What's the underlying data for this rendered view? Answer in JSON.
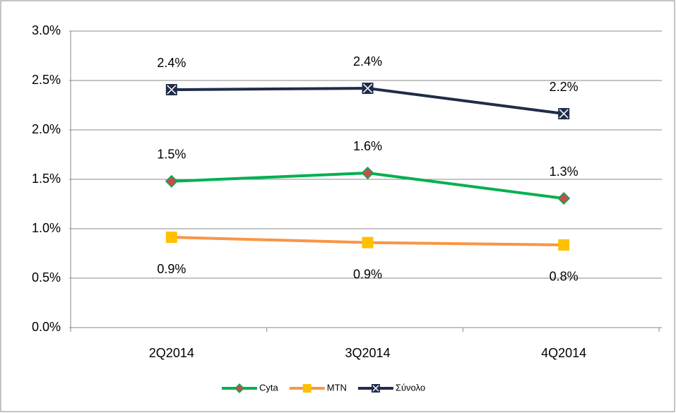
{
  "chart_data": {
    "type": "line",
    "categories": [
      "2Q2014",
      "3Q2014",
      "4Q2014"
    ],
    "series": [
      {
        "name": "Cyta",
        "color": "#00b050",
        "marker": "diamond",
        "marker_color": "#c0504d",
        "label_position": "above",
        "values": [
          1.48,
          1.564,
          1.307
        ],
        "value_labels": [
          "1.5%",
          "1.6%",
          "1.3%"
        ]
      },
      {
        "name": "MTN",
        "color": "#f79646",
        "marker": "square",
        "marker_color": "#ffc000",
        "label_position": "below",
        "values": [
          0.914,
          0.86,
          0.836
        ],
        "value_labels": [
          "0.9%",
          "0.9%",
          "0.8%"
        ]
      },
      {
        "name": "Σύνολο",
        "color": "#1f2d4a",
        "marker": "x-square",
        "marker_color": "#1f2d4a",
        "label_position": "above",
        "values": [
          2.407,
          2.421,
          2.164
        ],
        "value_labels": [
          "2.4%",
          "2.4%",
          "2.2%"
        ]
      }
    ],
    "ylim": [
      0,
      3
    ],
    "yticks": [
      {
        "value": 0,
        "label": "0.0%"
      },
      {
        "value": 0.5,
        "label": "0.5%"
      },
      {
        "value": 1,
        "label": "1.0%"
      },
      {
        "value": 1.5,
        "label": "1.5%"
      },
      {
        "value": 2,
        "label": "2.0%"
      },
      {
        "value": 2.5,
        "label": "2.5%"
      },
      {
        "value": 3,
        "label": "3.0%"
      }
    ],
    "grid": true,
    "legend": "bottom"
  }
}
